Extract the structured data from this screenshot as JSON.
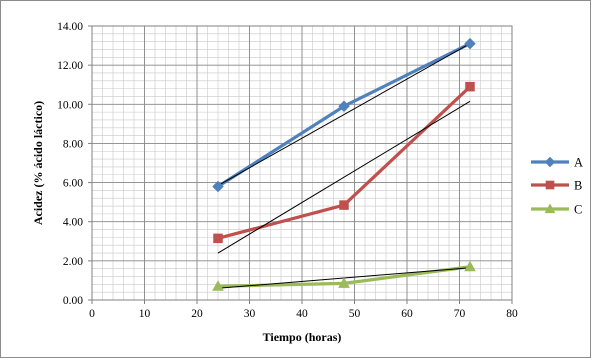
{
  "chart_data": {
    "type": "line",
    "xlabel": "Tiempo (horas)",
    "ylabel": "Acidez (% ácido láctico)",
    "xlim": [
      0,
      80
    ],
    "ylim": [
      0,
      14
    ],
    "x_ticks": [
      0,
      10,
      20,
      30,
      40,
      50,
      60,
      70,
      80
    ],
    "x_tick_labels": [
      "0",
      "10",
      "20",
      "30",
      "40",
      "50",
      "60",
      "70",
      "80"
    ],
    "y_ticks": [
      0,
      2,
      4,
      6,
      8,
      10,
      12,
      14
    ],
    "y_tick_labels": [
      "0.00",
      "2.00",
      "4.00",
      "6.00",
      "8.00",
      "10.00",
      "12.00",
      "14.00"
    ],
    "grid": true,
    "minor_grid": true,
    "legend_position": "right",
    "series": [
      {
        "name": "A",
        "color": "#4F81BD",
        "marker": "diamond",
        "x": [
          24,
          48,
          72
        ],
        "y": [
          5.8,
          9.9,
          13.1
        ]
      },
      {
        "name": "B",
        "color": "#C0504D",
        "marker": "square",
        "x": [
          24,
          48,
          72
        ],
        "y": [
          3.15,
          4.85,
          10.9
        ]
      },
      {
        "name": "C",
        "color": "#9BBB59",
        "marker": "triangle",
        "x": [
          24,
          48,
          72
        ],
        "y": [
          0.7,
          0.85,
          1.7
        ]
      }
    ],
    "trendlines": [
      {
        "series": "A",
        "color": "#000000",
        "x": [
          24,
          72
        ],
        "y": [
          5.85,
          13.1
        ]
      },
      {
        "series": "B",
        "color": "#000000",
        "x": [
          24,
          72
        ],
        "y": [
          2.4,
          10.15
        ]
      },
      {
        "series": "C",
        "color": "#000000",
        "x": [
          24,
          72
        ],
        "y": [
          0.6,
          1.65
        ]
      }
    ]
  }
}
